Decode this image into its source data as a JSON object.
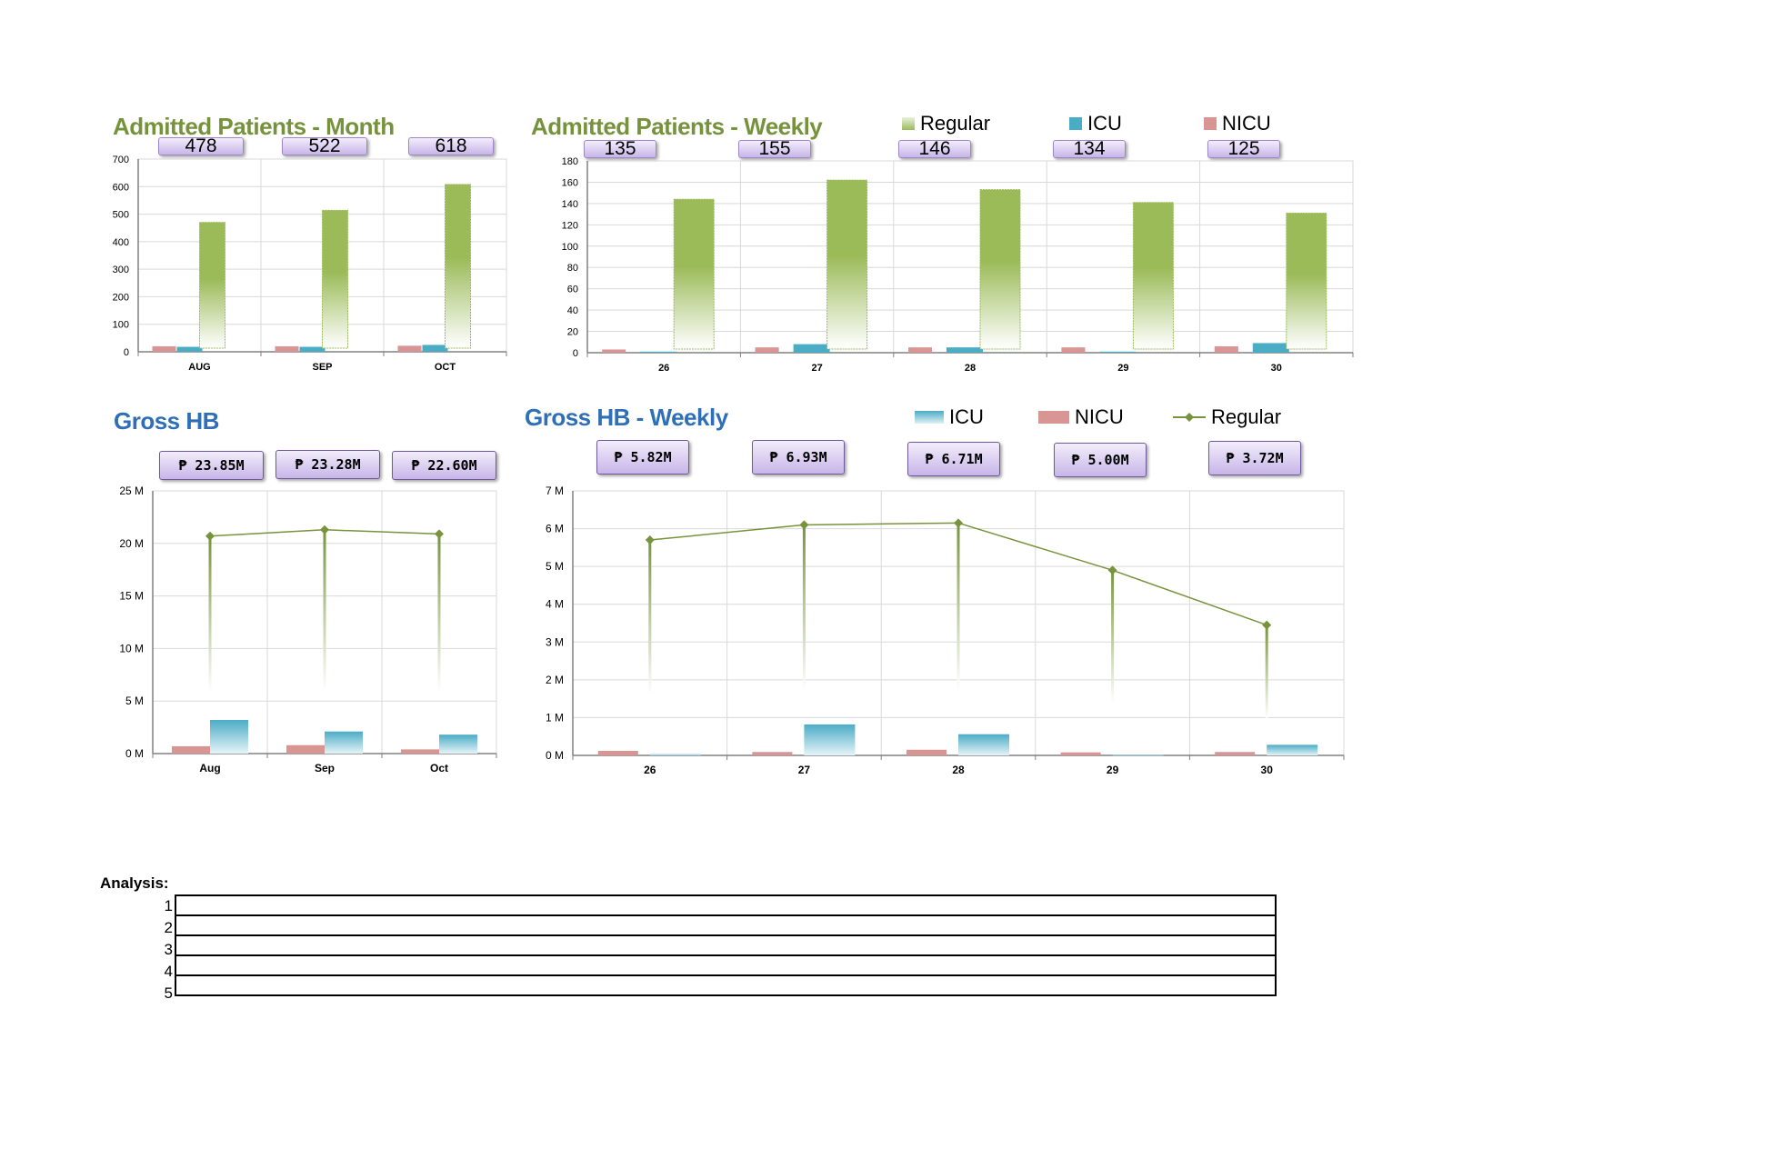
{
  "admitted_month": {
    "title": "Admitted Patients - Month",
    "badges": [
      "478",
      "522",
      "618"
    ]
  },
  "admitted_weekly": {
    "title": "Admitted Patients - Weekly",
    "badges": [
      "135",
      "155",
      "146",
      "134",
      "125"
    ],
    "legend": [
      {
        "label": "Regular",
        "color": "#9bbb59"
      },
      {
        "label": "ICU",
        "color": "#4bacc6"
      },
      {
        "label": "NICU",
        "color": "#d99594"
      }
    ]
  },
  "gross_hb": {
    "title": "Gross HB",
    "badges": [
      "₱ 23.85M",
      "₱ 23.28M",
      "₱ 22.60M"
    ]
  },
  "gross_hb_weekly": {
    "title": "Gross HB - Weekly",
    "badges": [
      "₱ 5.82M",
      "₱ 6.93M",
      "₱ 6.71M",
      "₱ 5.00M",
      "₱ 3.72M"
    ],
    "legend": [
      {
        "label": "ICU",
        "color": "#4bacc6"
      },
      {
        "label": "NICU",
        "color": "#d99594"
      },
      {
        "label": "Regular",
        "color": "#77933c"
      }
    ]
  },
  "analysis": {
    "label": "Analysis:",
    "rows": [
      "1",
      "2",
      "3",
      "4",
      "5"
    ]
  },
  "chart_data": [
    {
      "type": "bar",
      "title": "Admitted Patients - Month",
      "categories": [
        "AUG",
        "SEP",
        "OCT"
      ],
      "ylim": [
        0,
        700
      ],
      "yticks": [
        0,
        100,
        200,
        300,
        400,
        500,
        600,
        700
      ],
      "ytick_labels": [
        "0",
        "100",
        "200",
        "300",
        "400",
        "500",
        "600",
        "700"
      ],
      "series": [
        {
          "name": "NICU",
          "values": [
            20,
            20,
            22
          ],
          "color": "#d99594"
        },
        {
          "name": "ICU",
          "values": [
            18,
            18,
            25
          ],
          "color": "#4bacc6"
        },
        {
          "name": "Regular",
          "values": [
            440,
            484,
            571
          ],
          "color": "#9bbb59"
        }
      ],
      "grid": true
    },
    {
      "type": "bar",
      "title": "Admitted Patients - Weekly",
      "categories": [
        "26",
        "27",
        "28",
        "29",
        "30"
      ],
      "ylim": [
        0,
        180
      ],
      "yticks": [
        0,
        20,
        40,
        60,
        80,
        100,
        120,
        140,
        160,
        180
      ],
      "ytick_labels": [
        "0",
        "20",
        "40",
        "60",
        "80",
        "100",
        "120",
        "140",
        "160",
        "180"
      ],
      "series": [
        {
          "name": "NICU",
          "values": [
            3,
            5,
            5,
            5,
            6
          ],
          "color": "#d99594"
        },
        {
          "name": "ICU",
          "values": [
            1,
            8,
            5,
            1,
            9
          ],
          "color": "#4bacc6"
        },
        {
          "name": "Regular",
          "values": [
            131,
            142,
            136,
            128,
            110
          ],
          "color": "#9bbb59"
        }
      ],
      "grid": true
    },
    {
      "type": "line",
      "title": "Gross HB",
      "categories": [
        "Aug",
        "Sep",
        "Oct"
      ],
      "ylim": [
        0,
        25000000
      ],
      "yticks": [
        0,
        5000000,
        10000000,
        15000000,
        20000000,
        25000000
      ],
      "ytick_labels": [
        "0 M",
        "5 M",
        "10 M",
        "15 M",
        "20 M",
        "25 M"
      ],
      "series": [
        {
          "name": "NICU",
          "kind": "bar",
          "values": [
            700000,
            800000,
            400000
          ],
          "color": "#d99594"
        },
        {
          "name": "ICU",
          "kind": "bar",
          "values": [
            3200000,
            2100000,
            1800000
          ],
          "color": "#4bacc6"
        },
        {
          "name": "Regular",
          "kind": "line",
          "values": [
            20700000,
            21300000,
            20900000
          ],
          "color": "#77933c"
        }
      ],
      "grid": true
    },
    {
      "type": "line",
      "title": "Gross HB - Weekly",
      "categories": [
        "26",
        "27",
        "28",
        "29",
        "30"
      ],
      "ylim": [
        0,
        7000000
      ],
      "yticks": [
        0,
        1000000,
        2000000,
        3000000,
        4000000,
        5000000,
        6000000,
        7000000
      ],
      "ytick_labels": [
        "0 M",
        "1 M",
        "2 M",
        "3 M",
        "4 M",
        "5 M",
        "6 M",
        "7 M"
      ],
      "series": [
        {
          "name": "NICU",
          "kind": "bar",
          "values": [
            120000,
            90000,
            150000,
            80000,
            90000
          ],
          "color": "#d99594"
        },
        {
          "name": "ICU",
          "kind": "bar",
          "values": [
            30000,
            820000,
            560000,
            20000,
            280000
          ],
          "color": "#4bacc6"
        },
        {
          "name": "Regular",
          "kind": "line",
          "values": [
            5700000,
            6100000,
            6150000,
            4900000,
            3450000
          ],
          "color": "#77933c"
        }
      ],
      "grid": true
    }
  ]
}
